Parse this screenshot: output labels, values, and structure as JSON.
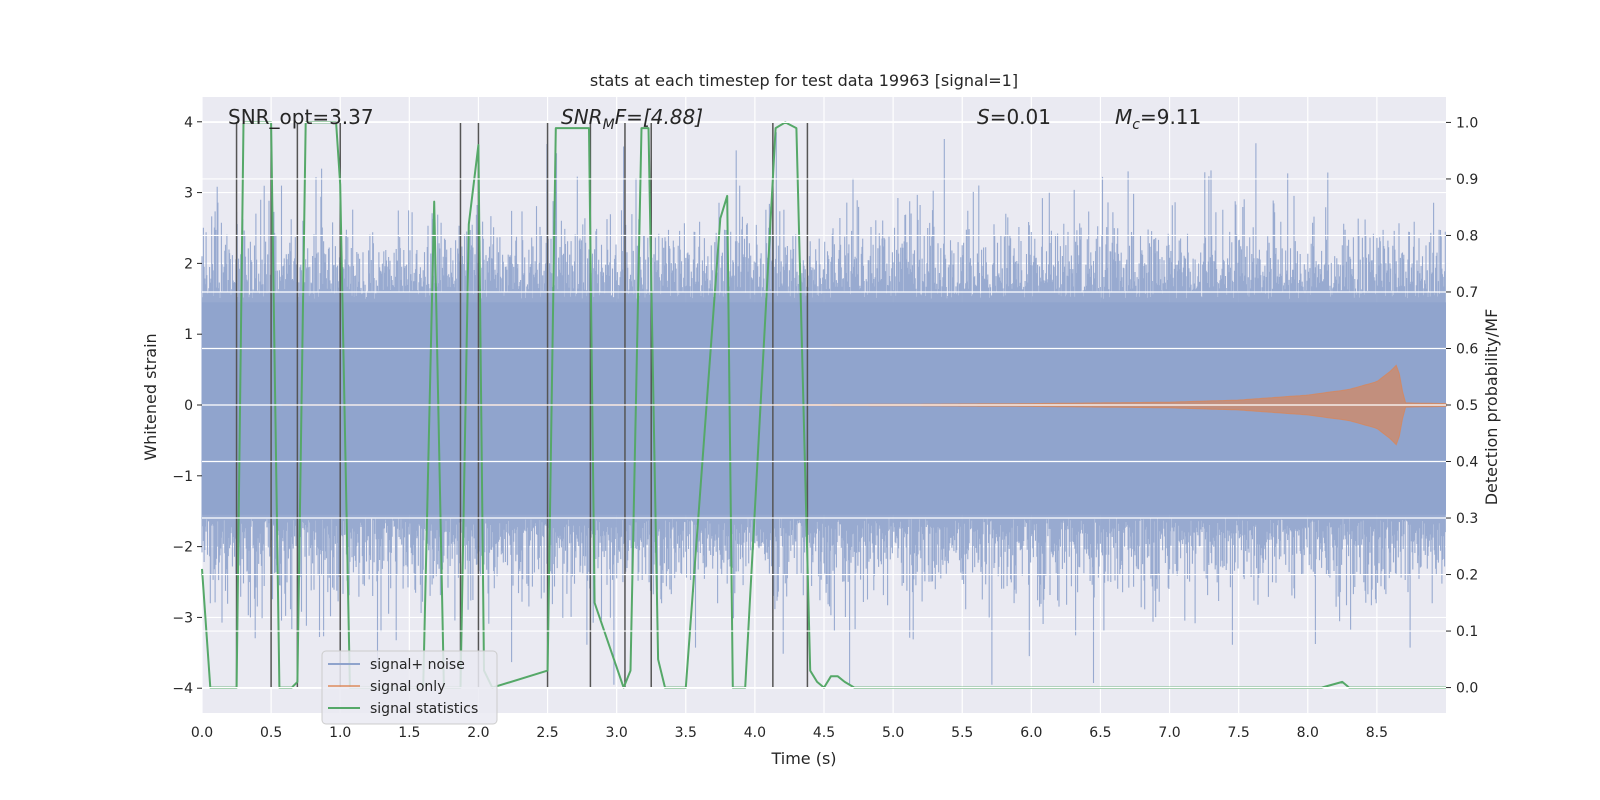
{
  "chart_data": {
    "type": "line",
    "title": "stats at each timestep for test data 19963 [signal=1]",
    "xlabel": "Time (s)",
    "ylabel_left": "Whitened strain",
    "ylabel_right": "Detection probability/MF",
    "xlim": [
      0,
      9
    ],
    "ylim_left": [
      -4.35,
      4.35
    ],
    "ylim_right": [
      -0.045,
      1.045
    ],
    "x_ticks": [
      "0.0",
      "0.5",
      "1.0",
      "1.5",
      "2.0",
      "2.5",
      "3.0",
      "3.5",
      "4.0",
      "4.5",
      "5.0",
      "5.5",
      "6.0",
      "6.5",
      "7.0",
      "7.5",
      "8.0",
      "8.5"
    ],
    "y_ticks_left": [
      "−4",
      "−3",
      "−2",
      "−1",
      "0",
      "1",
      "2",
      "3",
      "4"
    ],
    "y_ticks_right": [
      "0.0",
      "0.1",
      "0.2",
      "0.3",
      "0.4",
      "0.5",
      "0.6",
      "0.7",
      "0.8",
      "0.9",
      "1.0"
    ],
    "grid": true,
    "legend_position": "lower-left",
    "annotations": {
      "snr_opt": "SNR_opt=3.37",
      "snr_mf_base": "SNR",
      "snr_mf_sub": "M",
      "snr_mf_tail": "F=[4.88]",
      "s_var": "S",
      "s_val": "=0.01",
      "mc_var": "M",
      "mc_sub": "c",
      "mc_val": "=9.11"
    },
    "series": [
      {
        "name": "signal+ noise",
        "axis": "left",
        "color": "#8fa3cc",
        "description_level": "noise amplitude approx ±2.4 with spikes to ±3.6"
      },
      {
        "name": "signal only",
        "axis": "left",
        "color": "#dd8452",
        "envelope": {
          "x": [
            0,
            4.0,
            5.0,
            6.0,
            7.0,
            7.5,
            8.0,
            8.3,
            8.5,
            8.6,
            8.65,
            8.7,
            9.0
          ],
          "amp": [
            0.0,
            0.005,
            0.01,
            0.02,
            0.04,
            0.07,
            0.14,
            0.22,
            0.33,
            0.48,
            0.58,
            0.03,
            0.02
          ]
        }
      },
      {
        "name": "signal statistics",
        "axis": "right",
        "color": "#55a868",
        "x": [
          0.0,
          0.06,
          0.25,
          0.3,
          0.5,
          0.56,
          0.65,
          0.69,
          0.75,
          0.97,
          1.0,
          1.07,
          1.6,
          1.68,
          1.75,
          1.87,
          1.93,
          2.0,
          2.04,
          2.1,
          2.5,
          2.56,
          2.8,
          2.84,
          3.05,
          3.1,
          3.18,
          3.23,
          3.3,
          3.35,
          3.5,
          3.75,
          3.8,
          3.84,
          3.93,
          4.15,
          4.22,
          4.3,
          4.4,
          4.45,
          4.5,
          4.55,
          4.6,
          4.65,
          4.72,
          4.8,
          4.9,
          5.0,
          6.0,
          7.0,
          8.1,
          8.25,
          8.3,
          8.6,
          9.0
        ],
        "y": [
          0.21,
          0.0,
          0.0,
          1.0,
          1.0,
          0.0,
          0.0,
          0.01,
          1.0,
          1.0,
          0.89,
          0.0,
          0.0,
          0.86,
          0.0,
          0.0,
          0.82,
          0.96,
          0.03,
          0.0,
          0.03,
          0.99,
          0.99,
          0.15,
          0.0,
          0.03,
          0.99,
          0.99,
          0.05,
          0.0,
          0.0,
          0.83,
          0.87,
          0.0,
          0.0,
          0.99,
          1.0,
          0.99,
          0.03,
          0.01,
          0.0,
          0.02,
          0.02,
          0.01,
          0.0,
          0.0,
          0.0,
          0.0,
          0.0,
          0.0,
          0.0,
          0.01,
          0.0,
          0.0,
          0.0
        ]
      }
    ],
    "vertical_markers_x": [
      0.25,
      0.5,
      0.69,
      1.0,
      1.87,
      2.0,
      2.5,
      2.81,
      3.06,
      3.25,
      4.13,
      4.38
    ]
  }
}
